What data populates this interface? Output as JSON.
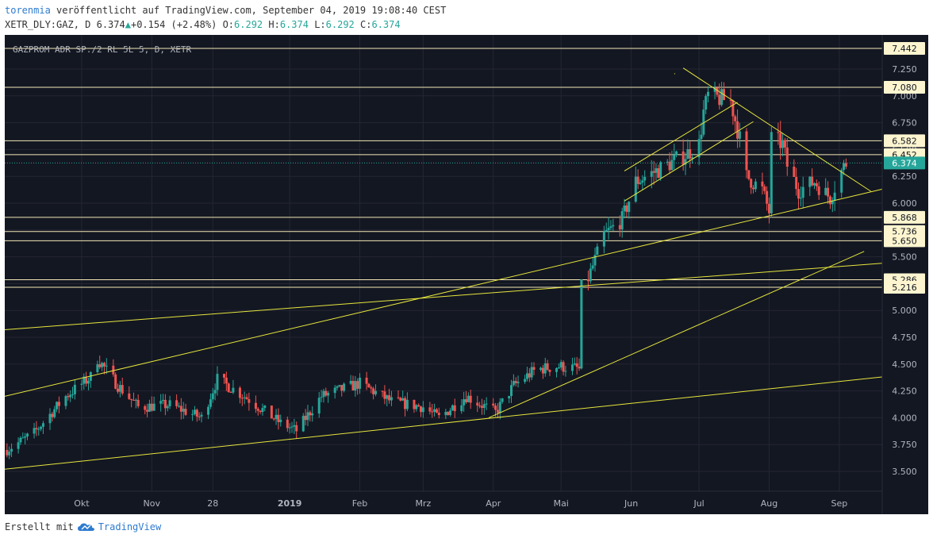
{
  "header": {
    "author": "torenmia",
    "published": "veröffentlicht auf TradingView.com, September 04, 2019 19:08:40 CEST",
    "symbol": "XETR_DLY:GAZ, D",
    "last": "6.374",
    "change": "+0.154 (+2.48%)",
    "o_label": "O:",
    "o": "6.292",
    "h_label": "H:",
    "h": "6.374",
    "l_label": "L:",
    "l": "6.292",
    "c_label": "C:",
    "c": "6.374"
  },
  "footer": {
    "created_with": "Erstellt mit",
    "brand": "TradingView"
  },
  "colors": {
    "background": "#131722",
    "grid": "#242733",
    "up": "#26a69a",
    "down": "#ef5350",
    "trend": "#e6e63c",
    "level": "#f3e7b4",
    "current": "#26a69a"
  },
  "chart_data": {
    "type": "candlestick",
    "title": "GAZPROM ADR SP./2 RL 5L 5, D, XETR",
    "ylim": [
      3.4,
      7.5
    ],
    "y_ticks": [
      "3.500",
      "3.750",
      "4.000",
      "4.250",
      "4.500",
      "4.750",
      "5.000",
      "5.250",
      "5.500",
      "5.750",
      "6.000",
      "6.250",
      "6.500",
      "6.750",
      "7.000",
      "7.250"
    ],
    "x_ticks": [
      {
        "label": "Okt",
        "date": "2018-10-01",
        "bold": false
      },
      {
        "label": "Nov",
        "date": "2018-11-01",
        "bold": false
      },
      {
        "label": "28",
        "date": "2018-11-28",
        "bold": false
      },
      {
        "label": "2019",
        "date": "2019-01-01",
        "bold": true
      },
      {
        "label": "Feb",
        "date": "2019-02-01",
        "bold": false
      },
      {
        "label": "Mrz",
        "date": "2019-03-01",
        "bold": false
      },
      {
        "label": "Apr",
        "date": "2019-04-01",
        "bold": false
      },
      {
        "label": "Mai",
        "date": "2019-05-01",
        "bold": false
      },
      {
        "label": "Jun",
        "date": "2019-06-01",
        "bold": false
      },
      {
        "label": "Jul",
        "date": "2019-07-01",
        "bold": false
      },
      {
        "label": "Aug",
        "date": "2019-08-01",
        "bold": false
      },
      {
        "label": "Sep",
        "date": "2019-09-01",
        "bold": false
      }
    ],
    "x_range": [
      "2018-08-28",
      "2019-09-20"
    ],
    "levels": [
      7.442,
      7.08,
      6.582,
      6.452,
      5.868,
      5.736,
      5.65,
      5.286,
      5.216
    ],
    "level_labels": [
      "7.442",
      "7.080",
      "6.582",
      "6.452",
      "5.868",
      "5.736",
      "5.650",
      "5.286",
      "5.216"
    ],
    "last_price": 6.374,
    "last_label": "6.374",
    "trendlines": [
      {
        "from": [
          "2018-08-28",
          4.82
        ],
        "to": [
          "2019-09-20",
          5.44
        ]
      },
      {
        "from": [
          "2018-08-28",
          4.2
        ],
        "to": [
          "2019-09-20",
          6.13
        ]
      },
      {
        "from": [
          "2018-08-28",
          3.52
        ],
        "to": [
          "2019-09-20",
          4.38
        ]
      },
      {
        "from": [
          "2019-03-30",
          4.0
        ],
        "to": [
          "2019-09-12",
          5.55
        ]
      },
      {
        "from": [
          "2019-05-29",
          6.02
        ],
        "to": [
          "2019-07-25",
          6.76
        ]
      },
      {
        "from": [
          "2019-05-29",
          6.3
        ],
        "to": [
          "2019-07-18",
          6.94
        ]
      },
      {
        "from": [
          "2019-06-24",
          7.26
        ],
        "to": [
          "2019-09-15",
          6.11
        ]
      }
    ],
    "anchors": [
      [
        "2018-08-29",
        3.7
      ],
      [
        "2018-09-10",
        3.86
      ],
      [
        "2018-09-24",
        4.2
      ],
      [
        "2018-10-05",
        4.38
      ],
      [
        "2018-10-08",
        4.55
      ],
      [
        "2018-10-17",
        4.3
      ],
      [
        "2018-10-26",
        4.1
      ],
      [
        "2018-11-09",
        4.12
      ],
      [
        "2018-11-23",
        4.0
      ],
      [
        "2018-11-30",
        4.36
      ],
      [
        "2018-12-12",
        4.2
      ],
      [
        "2018-12-28",
        3.95
      ],
      [
        "2019-01-04",
        3.88
      ],
      [
        "2019-01-15",
        4.2
      ],
      [
        "2019-02-01",
        4.32
      ],
      [
        "2019-02-15",
        4.15
      ],
      [
        "2019-03-01",
        4.1
      ],
      [
        "2019-03-08",
        4.0
      ],
      [
        "2019-03-20",
        4.2
      ],
      [
        "2019-04-02",
        4.05
      ],
      [
        "2019-04-10",
        4.3
      ],
      [
        "2019-04-20",
        4.45
      ],
      [
        "2019-04-30",
        4.48
      ],
      [
        "2019-05-08",
        4.46
      ],
      [
        "2019-05-09",
        4.45
      ],
      [
        "2019-05-10",
        5.22
      ],
      [
        "2019-05-13",
        5.3
      ],
      [
        "2019-05-20",
        5.7
      ],
      [
        "2019-05-28",
        5.85
      ],
      [
        "2019-06-03",
        6.2
      ],
      [
        "2019-06-12",
        6.3
      ],
      [
        "2019-06-25",
        6.45
      ],
      [
        "2019-07-01",
        6.55
      ],
      [
        "2019-07-03",
        6.85
      ],
      [
        "2019-07-05",
        7.0
      ],
      [
        "2019-07-15",
        6.95
      ],
      [
        "2019-07-19",
        6.6
      ],
      [
        "2019-07-22",
        6.25
      ],
      [
        "2019-07-29",
        6.12
      ],
      [
        "2019-08-01",
        5.92
      ],
      [
        "2019-08-02",
        6.6
      ],
      [
        "2019-08-07",
        6.55
      ],
      [
        "2019-08-09",
        6.35
      ],
      [
        "2019-08-14",
        6.12
      ],
      [
        "2019-08-21",
        6.2
      ],
      [
        "2019-08-28",
        6.05
      ],
      [
        "2019-09-02",
        6.3
      ],
      [
        "2019-09-04",
        6.374
      ]
    ]
  }
}
